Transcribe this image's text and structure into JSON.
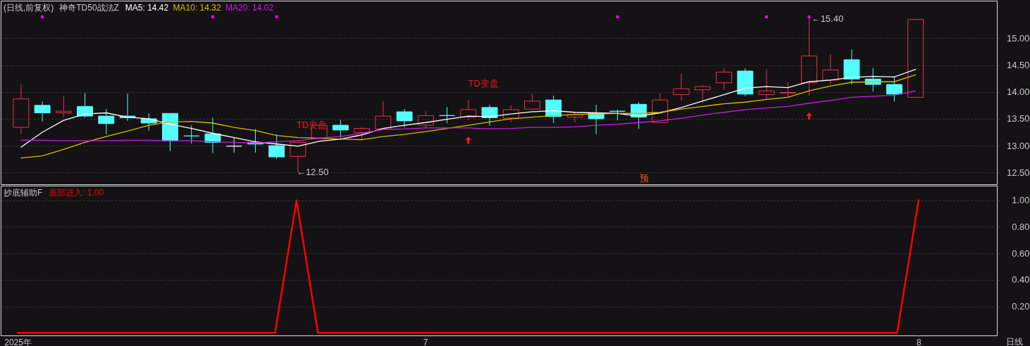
{
  "chart_data": [
    {
      "type": "candlestick",
      "title": "(日线,前复权)",
      "subtitle": "神奇TD50战法Z",
      "categories": [
        null,
        null,
        null,
        null,
        null,
        null,
        null,
        null,
        null,
        null,
        null,
        null,
        null,
        null,
        null,
        null,
        null,
        null,
        null,
        null,
        null,
        null,
        null,
        null,
        null,
        null,
        null,
        null,
        null,
        null,
        null,
        null,
        null,
        null,
        null,
        null,
        null,
        null,
        null,
        null,
        null,
        null,
        null
      ],
      "ohlc": [
        [
          13.34,
          14.14,
          13.22,
          13.87
        ],
        [
          13.75,
          13.82,
          13.45,
          13.61
        ],
        [
          13.61,
          13.93,
          13.53,
          13.64
        ],
        [
          13.73,
          13.98,
          13.52,
          13.55
        ],
        [
          13.55,
          13.68,
          13.21,
          13.41
        ],
        [
          13.55,
          13.97,
          13.46,
          13.52
        ],
        [
          13.5,
          13.6,
          13.28,
          13.42
        ],
        [
          13.6,
          13.6,
          12.9,
          13.09
        ],
        [
          13.18,
          13.38,
          13.04,
          13.18
        ],
        [
          13.22,
          13.52,
          12.86,
          13.06
        ],
        [
          12.99,
          13.14,
          12.87,
          12.99
        ],
        [
          13.06,
          13.31,
          12.87,
          13.03
        ],
        [
          13.0,
          13.21,
          12.75,
          12.79
        ],
        [
          12.8,
          13.1,
          12.5,
          13.06
        ],
        [
          13.13,
          13.38,
          13.13,
          13.38
        ],
        [
          13.38,
          13.48,
          13.14,
          13.29
        ],
        [
          13.24,
          13.34,
          13.09,
          13.32
        ],
        [
          13.31,
          13.83,
          13.31,
          13.55
        ],
        [
          13.63,
          13.68,
          13.34,
          13.46
        ],
        [
          13.38,
          13.64,
          13.34,
          13.56
        ],
        [
          13.56,
          13.72,
          13.42,
          13.56
        ],
        [
          13.53,
          13.85,
          13.48,
          13.67
        ],
        [
          13.71,
          13.76,
          13.37,
          13.52
        ],
        [
          13.51,
          13.75,
          13.44,
          13.67
        ],
        [
          13.68,
          13.97,
          13.66,
          13.83
        ],
        [
          13.85,
          13.93,
          13.42,
          13.54
        ],
        [
          13.53,
          13.62,
          13.43,
          13.58
        ],
        [
          13.61,
          13.76,
          13.21,
          13.5
        ],
        [
          13.64,
          13.67,
          13.47,
          13.64
        ],
        [
          13.77,
          13.81,
          13.31,
          13.53
        ],
        [
          13.43,
          13.98,
          13.43,
          13.85
        ],
        [
          13.95,
          14.34,
          13.84,
          14.06
        ],
        [
          14.04,
          14.13,
          13.8,
          14.1
        ],
        [
          14.17,
          14.44,
          14.04,
          14.37
        ],
        [
          14.39,
          14.44,
          13.92,
          13.96
        ],
        [
          13.95,
          14.43,
          13.85,
          14.02
        ],
        [
          13.98,
          14.18,
          13.9,
          13.99
        ],
        [
          14.17,
          15.4,
          13.93,
          14.67
        ],
        [
          14.22,
          14.7,
          14.14,
          14.41
        ],
        [
          14.6,
          14.79,
          14.14,
          14.24
        ],
        [
          14.24,
          14.45,
          14.01,
          14.14
        ],
        [
          14.14,
          14.28,
          13.82,
          13.96
        ],
        [
          13.9,
          15.35,
          13.9,
          15.35
        ]
      ],
      "colors": [
        "#ee3148",
        "#54fcfc",
        "#ee3148",
        "#54fcfc",
        "#54fcfc",
        "#54fcfc",
        "#54fcfc",
        "#54fcfc",
        "#54fcfc",
        "#54fcfc",
        "#e6e6e6",
        "#54fcfc",
        "#54fcfc",
        "#ee3148",
        "#ee3148",
        "#54fcfc",
        "#ee3148",
        "#ee3148",
        "#54fcfc",
        "#ee3148",
        "#54fcfc",
        "#ee3148",
        "#54fcfc",
        "#ee3148",
        "#ee3148",
        "#54fcfc",
        "#ee3148",
        "#54fcfc",
        "#54fcfc",
        "#54fcfc",
        "#ee3148",
        "#ee3148",
        "#ee3148",
        "#ee3148",
        "#54fcfc",
        "#ee3148",
        "#ee3148",
        "#ee3148",
        "#ee3148",
        "#54fcfc",
        "#54fcfc",
        "#54fcfc",
        "#ee3148"
      ],
      "series": [
        {
          "name": "MA5: 14.42",
          "type": "line",
          "color": "#ffffff",
          "values": [
            12.97,
            13.25,
            13.47,
            13.59,
            13.61,
            13.53,
            13.5,
            13.4,
            13.32,
            13.23,
            13.15,
            13.07,
            13.03,
            12.99,
            13.08,
            13.12,
            13.2,
            13.32,
            13.38,
            13.43,
            13.49,
            13.55,
            13.54,
            13.59,
            13.63,
            13.65,
            13.62,
            13.61,
            13.6,
            13.55,
            13.61,
            13.71,
            13.83,
            13.95,
            14.07,
            14.1,
            14.08,
            14.19,
            14.22,
            14.27,
            14.29,
            14.28,
            14.42
          ]
        },
        {
          "name": "MA10: 14.32",
          "type": "line",
          "color": "#d9bd00",
          "values": [
            12.77,
            12.81,
            12.93,
            13.06,
            13.17,
            13.27,
            13.38,
            13.44,
            13.45,
            13.42,
            13.34,
            13.28,
            13.19,
            13.15,
            13.14,
            13.12,
            13.11,
            13.17,
            13.21,
            13.26,
            13.32,
            13.38,
            13.44,
            13.5,
            13.53,
            13.56,
            13.58,
            13.59,
            13.6,
            13.6,
            13.62,
            13.68,
            13.73,
            13.78,
            13.81,
            13.86,
            13.9,
            14.02,
            14.11,
            14.18,
            14.19,
            14.19,
            14.32
          ]
        },
        {
          "name": "MA20: 14.02",
          "type": "line",
          "color": "#c81ee6",
          "values": [
            13.1,
            13.1,
            13.09,
            13.09,
            13.09,
            13.1,
            13.1,
            13.09,
            13.09,
            13.07,
            13.06,
            13.05,
            13.07,
            13.09,
            13.14,
            13.17,
            13.23,
            13.3,
            13.31,
            13.33,
            13.33,
            13.33,
            13.31,
            13.32,
            13.34,
            13.34,
            13.35,
            13.38,
            13.4,
            13.43,
            13.46,
            13.51,
            13.57,
            13.62,
            13.67,
            13.7,
            13.73,
            13.79,
            13.84,
            13.9,
            13.92,
            13.94,
            14.02
          ]
        },
        {
          "type": "scatter",
          "marker": "square",
          "color": "#ff00ff",
          "values": [
            null,
            15.4,
            null,
            null,
            null,
            null,
            null,
            null,
            null,
            15.4,
            null,
            null,
            15.4,
            null,
            null,
            null,
            null,
            null,
            null,
            null,
            null,
            null,
            null,
            null,
            null,
            null,
            null,
            null,
            15.4,
            null,
            null,
            null,
            null,
            null,
            null,
            15.4,
            null,
            15.4,
            null,
            null,
            null,
            null,
            null
          ]
        },
        {
          "type": "scatter",
          "marker": "triangle",
          "color": "#ff1a1a",
          "values": [
            null,
            null,
            null,
            null,
            null,
            null,
            null,
            null,
            null,
            null,
            null,
            null,
            null,
            null,
            null,
            null,
            null,
            null,
            null,
            null,
            null,
            13.1,
            null,
            null,
            null,
            null,
            null,
            null,
            null,
            null,
            null,
            null,
            null,
            null,
            null,
            null,
            null,
            13.55,
            null,
            null,
            null,
            null,
            null
          ]
        }
      ],
      "annotations": [
        "TD变盘",
        "TD变盘",
        "预",
        "←12.50",
        "←15.40"
      ],
      "ylim": [
        12.28,
        15.7
      ],
      "yticks": [
        {
          "value": 12.5,
          "label": "12.50"
        },
        {
          "value": 13,
          "label": "13.00"
        },
        {
          "value": 13.5,
          "label": "13.50"
        },
        {
          "value": 14,
          "label": "14.00"
        },
        {
          "value": 14.5,
          "label": "14.50"
        },
        {
          "value": 15,
          "label": "15.00"
        }
      ],
      "grid": "y",
      "tick_labels": "y"
    },
    {
      "type": "line",
      "title": "抄底辅助F",
      "xlabel": "日线",
      "categories": [
        "2025年",
        null,
        null,
        null,
        null,
        null,
        null,
        null,
        null,
        null,
        null,
        null,
        null,
        null,
        null,
        null,
        null,
        null,
        null,
        "7",
        null,
        null,
        null,
        null,
        null,
        null,
        null,
        null,
        null,
        null,
        null,
        null,
        null,
        null,
        null,
        null,
        null,
        null,
        null,
        null,
        null,
        null,
        "8"
      ],
      "series": [
        {
          "name": "底部进入: 1.00",
          "color": "#ff0000",
          "values": [
            0,
            0,
            0,
            0,
            0,
            0,
            0,
            0,
            0,
            0,
            0,
            0,
            0,
            1,
            0,
            0,
            0,
            0,
            0,
            0,
            0,
            0,
            0,
            0,
            0,
            0,
            0,
            0,
            0,
            0,
            0,
            0,
            0,
            0,
            0,
            0,
            0,
            0,
            0,
            0,
            0,
            0,
            1
          ]
        }
      ],
      "ylim": [
        -0.02,
        1.11
      ],
      "yticks": [
        {
          "value": 0.2,
          "label": "0.20"
        },
        {
          "value": 0.4,
          "label": "0.40"
        },
        {
          "value": 0.6,
          "label": "0.60"
        },
        {
          "value": 0.8,
          "label": "0.80"
        },
        {
          "value": 1,
          "label": "1.00"
        }
      ],
      "grid": "y"
    }
  ]
}
